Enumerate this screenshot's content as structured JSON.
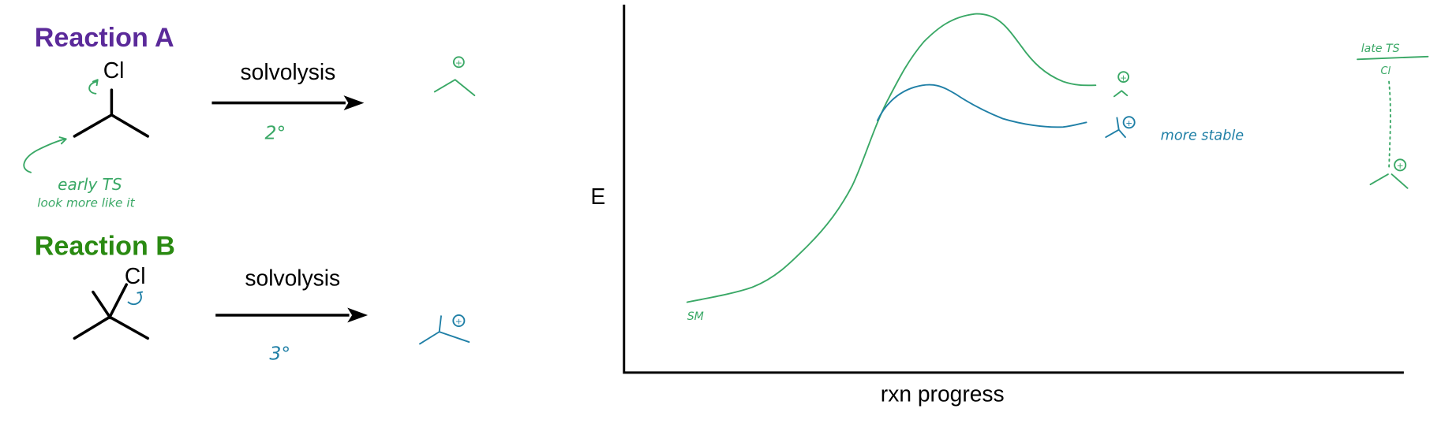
{
  "reaction_a": {
    "title": "Reaction A",
    "leaving_group": "Cl",
    "condition": "solvolysis",
    "carbocation_degree": "2°",
    "annotation_line1": "early TS",
    "annotation_line2": "look more like it",
    "title_color": "#5b2a9a"
  },
  "reaction_b": {
    "title": "Reaction B",
    "leaving_group": "Cl",
    "condition": "solvolysis",
    "carbocation_degree": "3°",
    "title_color": "#2a8a12"
  },
  "energy_diagram": {
    "y_label": "E",
    "x_label": "rxn progress",
    "start_label": "SM",
    "product_b_note": "more stable",
    "plus_sign": "+"
  },
  "side_note": {
    "title": "late TS",
    "leaving_group": "Cl"
  },
  "colors": {
    "green_ink": "#3aa866",
    "blue_ink": "#1f7fa6"
  }
}
